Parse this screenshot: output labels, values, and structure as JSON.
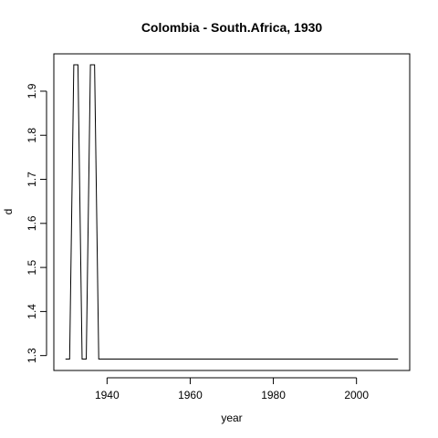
{
  "chart_data": {
    "type": "line",
    "title": "Colombia - South.Africa, 1930",
    "xlabel": "year",
    "ylabel": "d",
    "xlim": [
      1927.2,
      2012.8
    ],
    "ylim": [
      1.2662,
      1.9848
    ],
    "x_ticks": [
      1940,
      1960,
      1980,
      2000
    ],
    "y_ticks": [
      1.3,
      1.4,
      1.5,
      1.6,
      1.7,
      1.8,
      1.9
    ],
    "grid": false,
    "legend": "none",
    "series": [
      {
        "x": [
          1930,
          1931,
          1932,
          1933,
          1934,
          1935,
          1936,
          1937,
          1938,
          1939,
          1940,
          1950,
          1960,
          1970,
          1980,
          1990,
          2000,
          2010
        ],
        "values": [
          1.292,
          1.292,
          1.96,
          1.96,
          1.292,
          1.292,
          1.96,
          1.96,
          1.292,
          1.292,
          1.292,
          1.292,
          1.292,
          1.292,
          1.292,
          1.292,
          1.292,
          1.292
        ]
      }
    ]
  }
}
